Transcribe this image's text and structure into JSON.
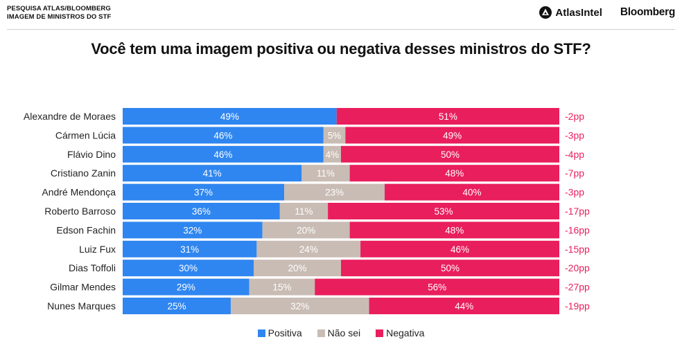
{
  "header": {
    "line1": "PESQUISA ATLAS/BLOOMBERG",
    "line2": "IMAGEM DE MINISTROS DO STF",
    "brand_atlas": "AtlasIntel",
    "brand_bloomberg": "Bloomberg"
  },
  "colors": {
    "positiva": "#2f86f0",
    "nao_sei": "#c9bcb4",
    "negativa": "#e91e5d",
    "net": "#e91e5d"
  },
  "chart_data": {
    "type": "bar",
    "stacked": true,
    "orientation": "horizontal",
    "title": "Você tem uma imagem positiva ou negativa desses ministros do STF?",
    "categories": [
      "Alexandre de Moraes",
      "Cármen Lúcia",
      "Flávio Dino",
      "Cristiano Zanin",
      "André Mendonça",
      "Roberto Barroso",
      "Edson Fachin",
      "Luiz Fux",
      "Dias Toffoli",
      "Gilmar Mendes",
      "Nunes Marques"
    ],
    "series": [
      {
        "name": "Positiva",
        "values": [
          49,
          46,
          46,
          41,
          37,
          36,
          32,
          31,
          30,
          29,
          25
        ]
      },
      {
        "name": "Não sei",
        "values": [
          0,
          5,
          4,
          11,
          23,
          11,
          20,
          24,
          20,
          15,
          32
        ]
      },
      {
        "name": "Negativa",
        "values": [
          51,
          49,
          50,
          48,
          40,
          53,
          48,
          46,
          50,
          56,
          44
        ]
      }
    ],
    "net_labels": [
      "-2pp",
      "-3pp",
      "-4pp",
      "-7pp",
      "-3pp",
      "-17pp",
      "-16pp",
      "-15pp",
      "-20pp",
      "-27pp",
      "-19pp"
    ],
    "legend_position": "bottom",
    "grid": false
  }
}
